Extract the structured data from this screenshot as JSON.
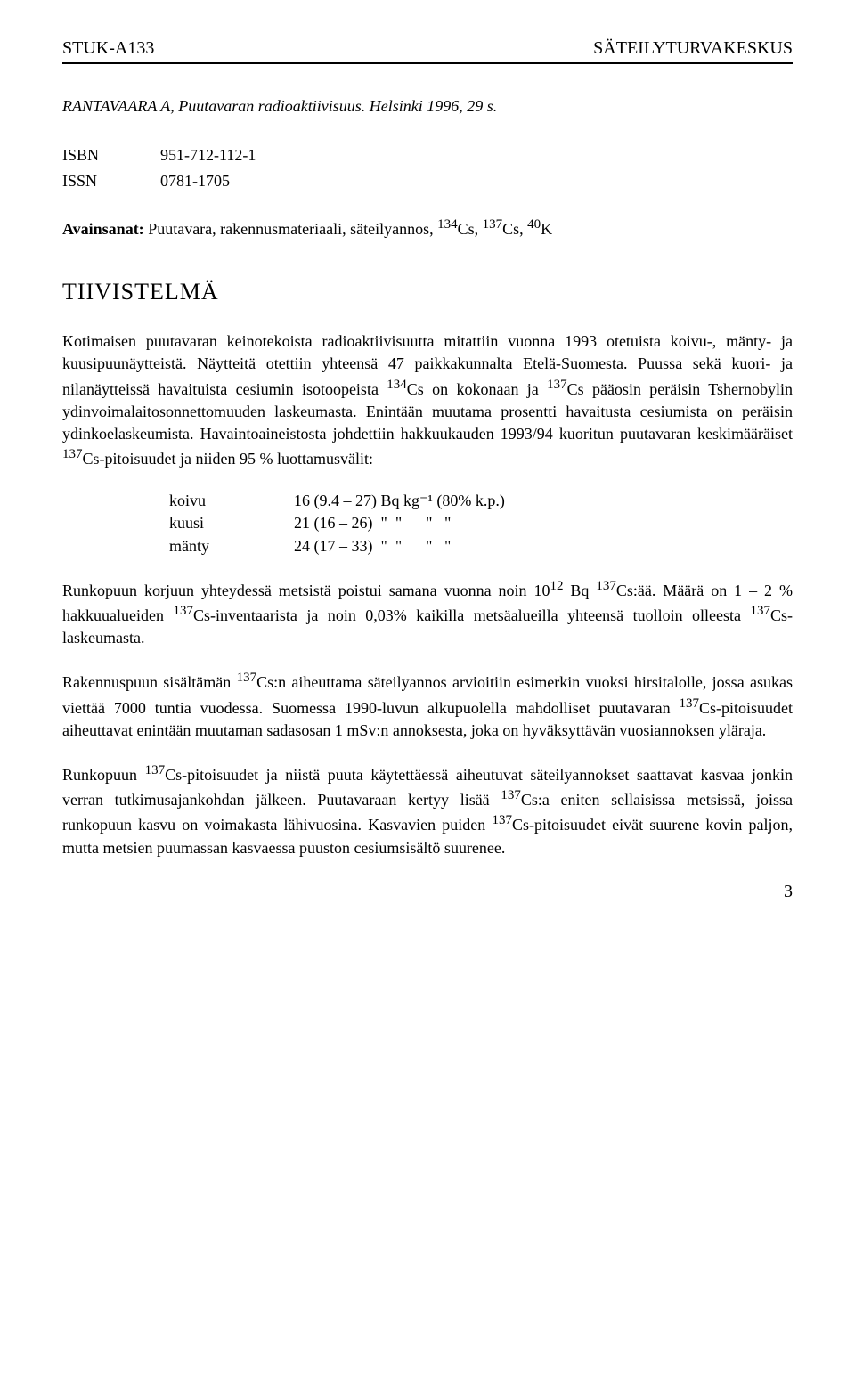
{
  "header": {
    "left": "STUK-A133",
    "right": "SÄTEILYTURVAKESKUS"
  },
  "citation": "RANTAVAARA A, Puutavaran radioaktiivisuus. Helsinki 1996, 29 s.",
  "meta": {
    "isbn_label": "ISBN",
    "isbn_value": "951-712-112-1",
    "issn_label": "ISSN",
    "issn_value": "0781-1705"
  },
  "keywords": {
    "label": "Avainsanat:",
    "text_before": " Puutavara, rakennusmateriaali, säteilyannos, ",
    "cs134": "134",
    "cs_text": "Cs, ",
    "cs137": "137",
    "k40": "40",
    "k_text": "K"
  },
  "section_title": "TIIVISTELMÄ",
  "paragraphs": {
    "p1_a": "Kotimaisen puutavaran keinotekoista radioaktiivisuutta mitattiin vuonna 1993 otetuista koivu-, mänty- ja kuusipuunäytteistä. Näytteitä otettiin yhteensä 47 paikkakunnalta Etelä-Suomesta. Puussa sekä kuori- ja nilanäytteissä havaituista cesiumin isotoopeista ",
    "p1_b": "Cs on kokonaan ja ",
    "p1_c": "Cs pääosin peräisin Tshernobylin ydinvoimalaitosonnettomuuden laskeumasta. Enintään muutama prosentti havaitusta cesiumista on peräisin ydinkoelaskeumista. Havaintoaineistosta johdettiin hakkuukauden 1993/94 kuoritun puutavaran keskimääräiset ",
    "p1_d": "Cs-pitoisuudet ja niiden 95 % luottamusvälit:"
  },
  "results": {
    "rows": [
      {
        "label": "koivu",
        "value": "16 (9.4 – 27) Bq kg⁻¹ (80% k.p.)"
      },
      {
        "label": "kuusi",
        "value": "21 (16 – 26)  \"  \"      \"   \""
      },
      {
        "label": "mänty",
        "value": "24 (17 – 33)  \"  \"      \"   \""
      }
    ]
  },
  "para2": {
    "a": "Runkopuun korjuun yhteydessä metsistä poistui samana vuonna noin 10",
    "exp": "12",
    "b": " Bq ",
    "c": "Cs:ää. Määrä on 1 – 2 % hakkuualueiden ",
    "d": "Cs-inventaarista ja noin 0,03% kaikilla metsäalueilla yhteensä tuolloin olleesta ",
    "e": "Cs-laskeumasta."
  },
  "para3": {
    "a": "Rakennuspuun sisältämän ",
    "b": "Cs:n aiheuttama säteilyannos arvioitiin esimerkin vuoksi hirsitalolle, jossa asukas viettää 7000 tuntia vuodessa. Suomessa 1990-luvun alkupuolella mahdolliset puutavaran ",
    "c": "Cs-pitoisuudet aiheuttavat enintään muutaman sadasosan 1 mSv:n annoksesta, joka on hyväksyttävän vuosiannoksen yläraja."
  },
  "para4": {
    "a": "Runkopuun ",
    "b": "Cs-pitoisuudet ja niistä puuta käytettäessä aiheutuvat säteilyannokset saattavat kasvaa jonkin verran tutkimusajankohdan jälkeen. Puutavaraan kertyy lisää ",
    "c": "Cs:a eniten sellaisissa metsissä, joissa runkopuun kasvu on voimakasta lähivuosina. Kasvavien puiden ",
    "d": "Cs-pitoisuudet eivät suurene kovin paljon, mutta metsien puumassan kasvaessa puuston cesiumsisältö suurenee."
  },
  "sup137": "137",
  "sup134": "134",
  "page_number": "3"
}
